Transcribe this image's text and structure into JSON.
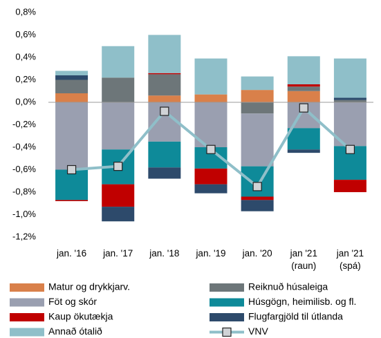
{
  "chart_data": {
    "type": "bar",
    "stacked": true,
    "categories": [
      "jan. '16",
      "jan. '17",
      "jan. '18",
      "jan. '19",
      "jan. '20",
      "jan '21\n(raun)",
      "jan '21\n(spá)"
    ],
    "series": [
      {
        "name": "Matur og drykkjarv.",
        "color": "#d9804a",
        "values": [
          0.08,
          0,
          0.06,
          0.07,
          0.11,
          0.1,
          0
        ]
      },
      {
        "name": "Reiknuð húsaleiga",
        "color": "#6d7679",
        "values": [
          0.12,
          0.22,
          0.19,
          0,
          -0.1,
          0.04,
          0.02
        ]
      },
      {
        "name": "Föt og skór",
        "color": "#9a9fb0",
        "values": [
          -0.6,
          -0.42,
          -0.35,
          -0.4,
          -0.47,
          -0.23,
          -0.39
        ]
      },
      {
        "name": "Húsgögn, heimilisb. og fl.",
        "color": "#0e8a99",
        "values": [
          -0.27,
          -0.31,
          -0.23,
          -0.19,
          -0.27,
          -0.19,
          -0.3
        ]
      },
      {
        "name": "Kaup ökutækja",
        "color": "#c00000",
        "values": [
          -0.01,
          -0.2,
          0.01,
          -0.14,
          -0.03,
          0.02,
          -0.11
        ]
      },
      {
        "name": "Flugfargjöld til útlanda",
        "color": "#2d4a6b",
        "values": [
          0.04,
          -0.13,
          -0.1,
          -0.08,
          -0.1,
          -0.03,
          0.02
        ]
      },
      {
        "name": "Annað ótalið",
        "color": "#8fbfc9",
        "values": [
          0.04,
          0.28,
          0.34,
          0.32,
          0.12,
          0.25,
          0.35
        ]
      },
      {
        "name": "VNV",
        "type": "line",
        "color": "#8fbfc9",
        "marker_color": "#d0d3d6",
        "values": [
          -0.6,
          -0.57,
          -0.08,
          -0.42,
          -0.75,
          -0.05,
          -0.42
        ]
      }
    ],
    "ylim": [
      -1.2,
      0.8
    ],
    "yticks": [
      {
        "value": -1.2,
        "label": "-1,2%"
      },
      {
        "value": -1.0,
        "label": "-1,0%"
      },
      {
        "value": -0.8,
        "label": "-0,8%"
      },
      {
        "value": -0.6,
        "label": "-0,6%"
      },
      {
        "value": -0.4,
        "label": "-0,4%"
      },
      {
        "value": -0.2,
        "label": "-0,2%"
      },
      {
        "value": 0,
        "label": "0,0%"
      },
      {
        "value": 0.2,
        "label": "0,2%"
      },
      {
        "value": 0.4,
        "label": "0,4%"
      },
      {
        "value": 0.6,
        "label": "0,6%"
      },
      {
        "value": 0.8,
        "label": "0,8%"
      }
    ],
    "grid": false,
    "legend": "bottom"
  }
}
